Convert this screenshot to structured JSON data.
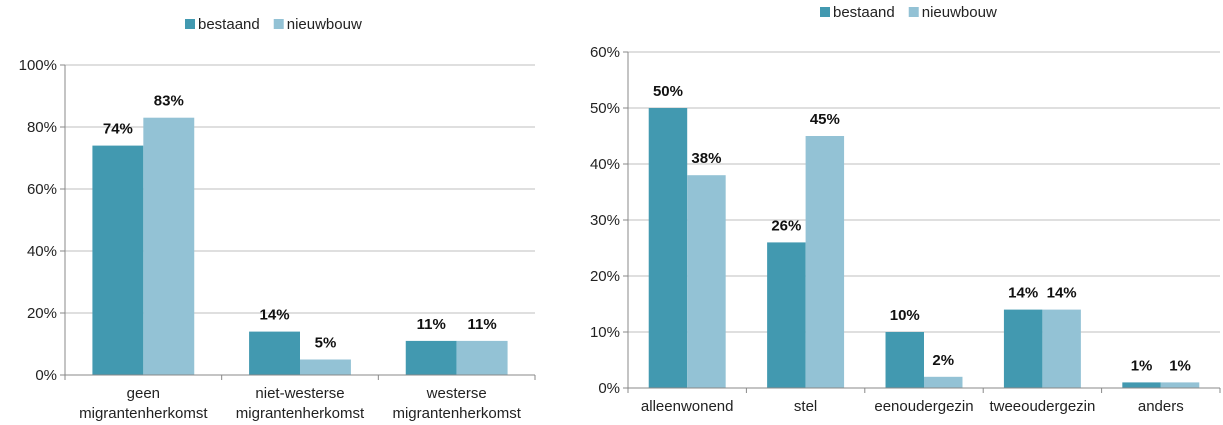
{
  "chart_data": [
    {
      "type": "bar",
      "categories": [
        [
          "geen",
          "migrantenherkomst"
        ],
        [
          "niet-westerse",
          "migrantenherkomst"
        ],
        [
          "westerse",
          "migrantenherkomst"
        ]
      ],
      "series": [
        {
          "name": "bestaand",
          "values": [
            74,
            14,
            11
          ],
          "labels": [
            "74%",
            "14%",
            "11%"
          ],
          "color": "#4299B0"
        },
        {
          "name": "nieuwbouw",
          "values": [
            83,
            5,
            11
          ],
          "labels": [
            "83%",
            "5%",
            "11%"
          ],
          "color": "#93C2D5"
        }
      ],
      "y_ticks": [
        "0%",
        "20%",
        "40%",
        "60%",
        "80%",
        "100%"
      ],
      "ylim": [
        0,
        100
      ],
      "grid": true,
      "legend": "top-center"
    },
    {
      "type": "bar",
      "categories": [
        [
          "alleenwonend"
        ],
        [
          "stel"
        ],
        [
          "eenoudergezin"
        ],
        [
          "tweeoudergezin"
        ],
        [
          "anders"
        ]
      ],
      "series": [
        {
          "name": "bestaand",
          "values": [
            50,
            26,
            10,
            14,
            1
          ],
          "labels": [
            "50%",
            "26%",
            "10%",
            "14%",
            "1%"
          ],
          "color": "#4299B0"
        },
        {
          "name": "nieuwbouw",
          "values": [
            38,
            45,
            2,
            14,
            1
          ],
          "labels": [
            "38%",
            "45%",
            "2%",
            "14%",
            "1%"
          ],
          "color": "#93C2D5"
        }
      ],
      "y_ticks": [
        "0%",
        "10%",
        "20%",
        "30%",
        "40%",
        "50%",
        "60%"
      ],
      "ylim": [
        0,
        60
      ],
      "grid": true,
      "legend": "top-center"
    }
  ]
}
